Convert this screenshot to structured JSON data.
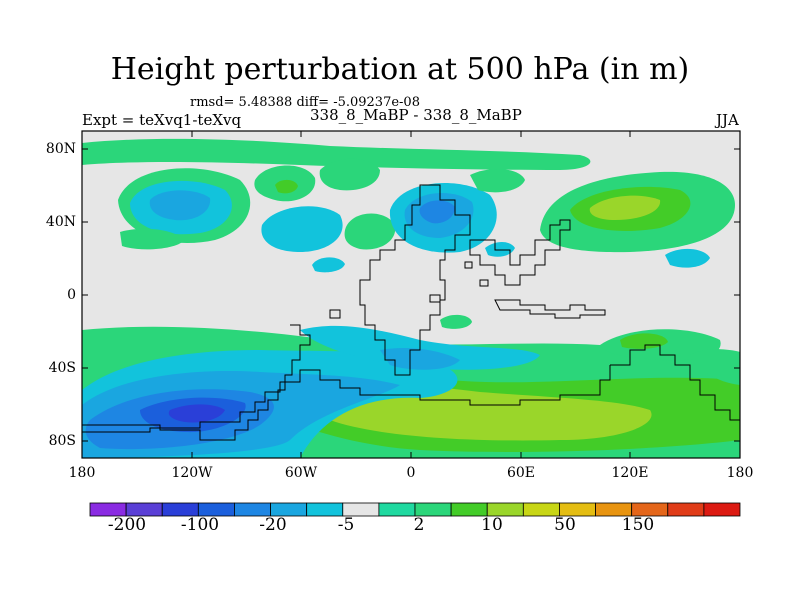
{
  "title": "Height perturbation at 500 hPa (in m)",
  "stats_text": "rmsd= 5.48388  diff= -5.09237e-08",
  "experiment_text": "Expt = teXvq1-teXvq",
  "case_text": "338_8_MaBP - 338_8_MaBP",
  "season": "JJA",
  "lat_labels": [
    "80N",
    "40N",
    "0",
    "40S",
    "80S"
  ],
  "lon_labels": [
    "180",
    "120W",
    "60W",
    "0",
    "60E",
    "120E",
    "180"
  ],
  "colorbar": {
    "tick_labels": [
      "-200",
      "-100",
      "-20",
      "-5",
      "2",
      "10",
      "50",
      "150"
    ],
    "colors": [
      "#8a2be2",
      "#5a3fd6",
      "#2a3fd8",
      "#1b5fdc",
      "#1e86e3",
      "#1aa6e0",
      "#12c3dc",
      "#e6e6e6",
      "#1fd9a0",
      "#2bd67a",
      "#43cc28",
      "#9ad62a",
      "#c8d616",
      "#e4bd12",
      "#e89410",
      "#e4661a",
      "#e03c18",
      "#dc1a12"
    ]
  }
}
